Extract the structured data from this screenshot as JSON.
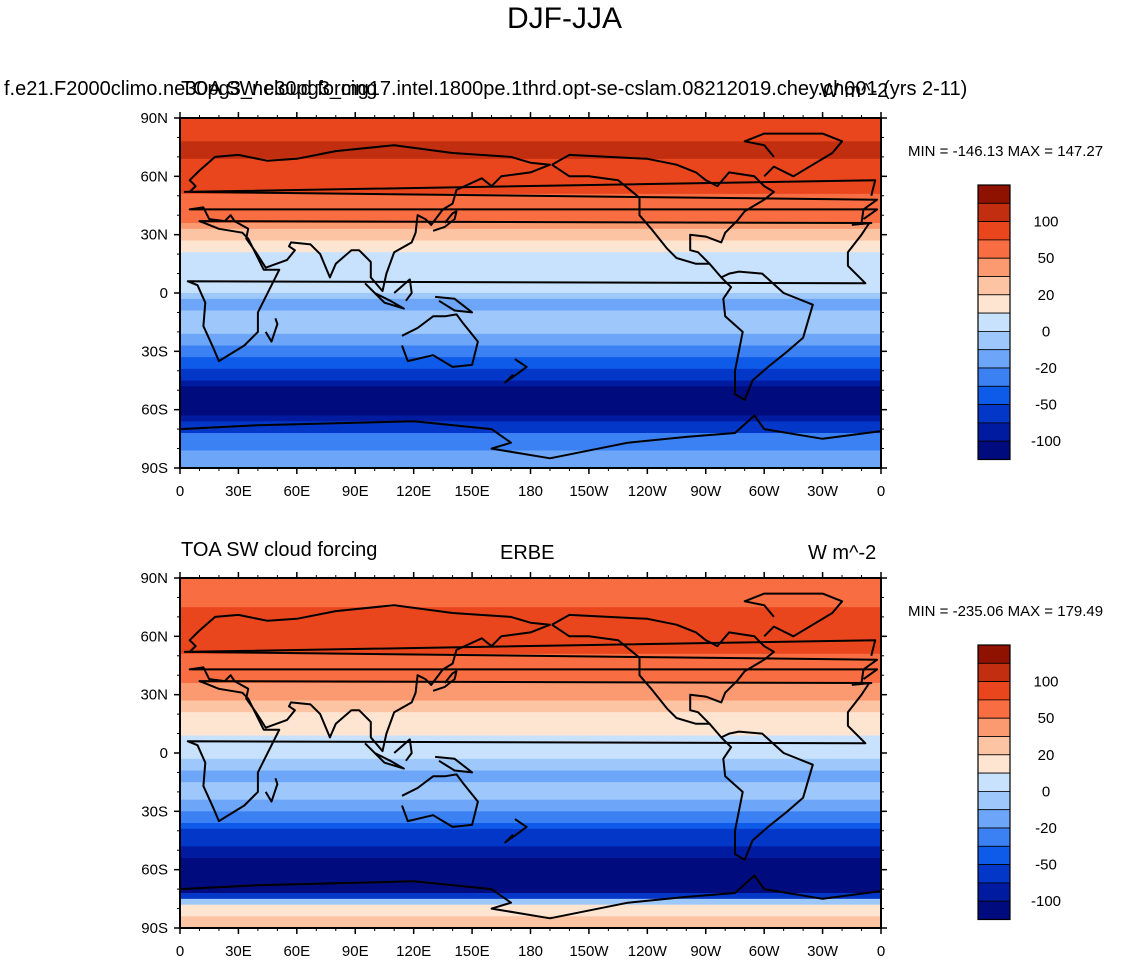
{
  "title": "DJF-JJA",
  "chart_data": [
    {
      "type": "heatmap",
      "title_left": "TOA SW cloud forcing",
      "title_center": "f.e21.F2000climo.ne30pg3_ne30pg3_mg17.intel.1800pe.1thrd.opt-se-cslam.08212019.chey.ch001 (yrs 2-11)",
      "title_right": "W m^-2",
      "stats": "MIN = -146.13 MAX = 147.27",
      "min": -146.13,
      "max": 147.27,
      "x_ticks": [
        "0",
        "30E",
        "60E",
        "90E",
        "120E",
        "150E",
        "180",
        "150W",
        "120W",
        "90W",
        "60W",
        "30W",
        "0"
      ],
      "y_ticks": [
        "90N",
        "60N",
        "30N",
        "0",
        "30S",
        "60S",
        "90S"
      ],
      "colorbar_labels": [
        "100",
        "50",
        "20",
        "0",
        "-20",
        "-50",
        "-100"
      ],
      "lat_profile": [
        [
          -90,
          -18
        ],
        [
          -75,
          -22
        ],
        [
          -65,
          -95
        ],
        [
          -55,
          -125
        ],
        [
          -45,
          -80
        ],
        [
          -35,
          -40
        ],
        [
          -25,
          -12
        ],
        [
          -15,
          -6
        ],
        [
          -5,
          -12
        ],
        [
          5,
          8
        ],
        [
          15,
          5
        ],
        [
          25,
          15
        ],
        [
          35,
          45
        ],
        [
          45,
          65
        ],
        [
          55,
          85
        ],
        [
          65,
          90
        ],
        [
          75,
          110
        ],
        [
          85,
          85
        ],
        [
          90,
          80
        ]
      ]
    },
    {
      "type": "heatmap",
      "title_left": "TOA SW cloud forcing",
      "title_center": "ERBE",
      "title_right": "W m^-2",
      "stats": "MIN = -235.06 MAX = 179.49",
      "min": -235.06,
      "max": 179.49,
      "x_ticks": [
        "0",
        "30E",
        "60E",
        "90E",
        "120E",
        "150E",
        "180",
        "150W",
        "120W",
        "90W",
        "60W",
        "30W",
        "0"
      ],
      "y_ticks": [
        "90N",
        "60N",
        "30N",
        "0",
        "30S",
        "60S",
        "90S"
      ],
      "colorbar_labels": [
        "100",
        "50",
        "20",
        "0",
        "-20",
        "-50",
        "-100"
      ],
      "lat_profile": [
        [
          -90,
          25
        ],
        [
          -78,
          15
        ],
        [
          -70,
          -110
        ],
        [
          -62,
          -125
        ],
        [
          -52,
          -95
        ],
        [
          -42,
          -55
        ],
        [
          -32,
          -25
        ],
        [
          -22,
          -8
        ],
        [
          -10,
          -12
        ],
        [
          0,
          5
        ],
        [
          10,
          10
        ],
        [
          20,
          20
        ],
        [
          30,
          40
        ],
        [
          40,
          60
        ],
        [
          50,
          80
        ],
        [
          60,
          95
        ],
        [
          70,
          85
        ],
        [
          80,
          75
        ],
        [
          90,
          60
        ]
      ]
    }
  ],
  "colorbar": {
    "colors": [
      "#000c7d",
      "#001ba0",
      "#0237c8",
      "#0f5be9",
      "#3b81f4",
      "#6da6f8",
      "#9ec8fb",
      "#c8e1fd",
      "#fee5d2",
      "#fdc4a4",
      "#fb9a70",
      "#f86d41",
      "#e9461e",
      "#c22e10",
      "#8f1200"
    ]
  }
}
